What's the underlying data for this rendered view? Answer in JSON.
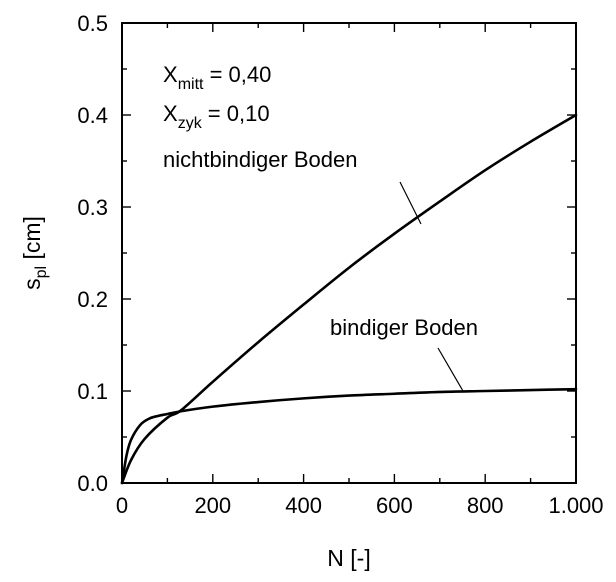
{
  "chart_data": {
    "type": "line",
    "xlabel": "N [-]",
    "ylabel": {
      "main": "s",
      "sub": "pl",
      "unit": " [cm]"
    },
    "xlim": [
      0,
      1000
    ],
    "ylim": [
      0,
      0.5
    ],
    "x_ticks": [
      0,
      200,
      400,
      600,
      800,
      1000
    ],
    "x_tick_labels": [
      "0",
      "200",
      "400",
      "600",
      "800",
      "1.000"
    ],
    "y_ticks": [
      0.0,
      0.1,
      0.2,
      0.3,
      0.4,
      0.5
    ],
    "y_tick_labels": [
      "0.0",
      "0.1",
      "0.2",
      "0.3",
      "0.4",
      "0.5"
    ],
    "grid": false,
    "annotations": {
      "x_mitt": {
        "main": "X",
        "sub": "mitt",
        "value": " = 0,40"
      },
      "x_zyk": {
        "main": "X",
        "sub": "zyk",
        "value": " = 0,10"
      }
    },
    "series": [
      {
        "name": "nichtbindiger Boden",
        "x": [
          0,
          20,
          50,
          100,
          130,
          200,
          300,
          400,
          500,
          600,
          700,
          800,
          900,
          1000
        ],
        "y": [
          0,
          0.025,
          0.048,
          0.071,
          0.079,
          0.11,
          0.153,
          0.194,
          0.234,
          0.271,
          0.306,
          0.34,
          0.371,
          0.4
        ],
        "label_anchor": [
          630,
          0.262
        ]
      },
      {
        "name": "bindiger Boden",
        "x": [
          0,
          10,
          20,
          40,
          60,
          80,
          100,
          130,
          200,
          300,
          400,
          500,
          600,
          700,
          800,
          900,
          1000
        ],
        "y": [
          0,
          0.03,
          0.047,
          0.063,
          0.07,
          0.073,
          0.075,
          0.078,
          0.083,
          0.088,
          0.092,
          0.095,
          0.097,
          0.099,
          0.1,
          0.101,
          0.102
        ],
        "label_anchor": [
          760,
          0.1
        ]
      }
    ]
  }
}
